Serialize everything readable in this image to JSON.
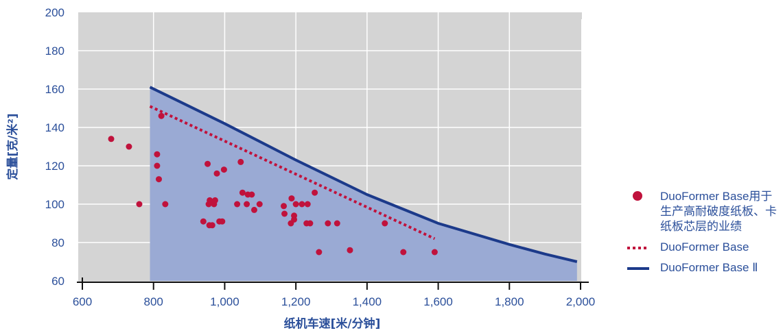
{
  "chart_data": {
    "type": "scatter",
    "xlabel": "纸机车速[米/分钟]",
    "ylabel": "定量[克/米²]",
    "xlim": [
      600,
      2000
    ],
    "ylim": [
      60,
      200
    ],
    "x_ticks": [
      "600",
      "800",
      "1,000",
      "1,200",
      "1,400",
      "1,600",
      "1,800",
      "2,000"
    ],
    "y_ticks": [
      "60",
      "80",
      "100",
      "120",
      "140",
      "160",
      "180",
      "200"
    ],
    "grid": true,
    "legend_position": "right",
    "colors": {
      "plot_background": "#d4d4d4",
      "region_fill": "#9aaad4",
      "grid": "#ffffff",
      "axis_text": "#2b4f9a",
      "points": "#c0123c",
      "base_line": "#c0123c",
      "base2_line": "#1c3a8a"
    },
    "series": [
      {
        "name": "DuoFormer Base用于生产高耐破度纸板、卡纸板芯层的业绩",
        "kind": "scatter",
        "points": [
          [
            681,
            134
          ],
          [
            731,
            130
          ],
          [
            760,
            100
          ],
          [
            810,
            126
          ],
          [
            810,
            120
          ],
          [
            815,
            113
          ],
          [
            822,
            146
          ],
          [
            833,
            100
          ],
          [
            940,
            91
          ],
          [
            952,
            121
          ],
          [
            955,
            100
          ],
          [
            957,
            89
          ],
          [
            958,
            102
          ],
          [
            965,
            89
          ],
          [
            970,
            100
          ],
          [
            973,
            102
          ],
          [
            978,
            116
          ],
          [
            985,
            91
          ],
          [
            993,
            91
          ],
          [
            998,
            118
          ],
          [
            1035,
            100
          ],
          [
            1045,
            122
          ],
          [
            1050,
            106
          ],
          [
            1062,
            100
          ],
          [
            1065,
            105
          ],
          [
            1076,
            105
          ],
          [
            1083,
            97
          ],
          [
            1098,
            100
          ],
          [
            1166,
            99
          ],
          [
            1168,
            95
          ],
          [
            1186,
            90
          ],
          [
            1188,
            103
          ],
          [
            1195,
            94
          ],
          [
            1195,
            92
          ],
          [
            1200,
            100
          ],
          [
            1217,
            100
          ],
          [
            1230,
            90
          ],
          [
            1233,
            100
          ],
          [
            1240,
            90
          ],
          [
            1253,
            106
          ],
          [
            1265,
            75
          ],
          [
            1290,
            90
          ],
          [
            1316,
            90
          ],
          [
            1352,
            76
          ],
          [
            1450,
            90
          ],
          [
            1502,
            75
          ],
          [
            1590,
            75
          ]
        ]
      },
      {
        "name": "DuoFormer Base",
        "kind": "line",
        "style": "dotted",
        "points": [
          [
            790,
            151
          ],
          [
            1590,
            82
          ]
        ]
      },
      {
        "name": "DuoFormer Base Ⅱ",
        "kind": "line",
        "style": "solid",
        "points": [
          [
            790,
            161
          ],
          [
            1000,
            142
          ],
          [
            1200,
            123
          ],
          [
            1400,
            105
          ],
          [
            1600,
            90
          ],
          [
            1800,
            79
          ],
          [
            1900,
            74
          ],
          [
            1990,
            70
          ]
        ]
      }
    ]
  }
}
